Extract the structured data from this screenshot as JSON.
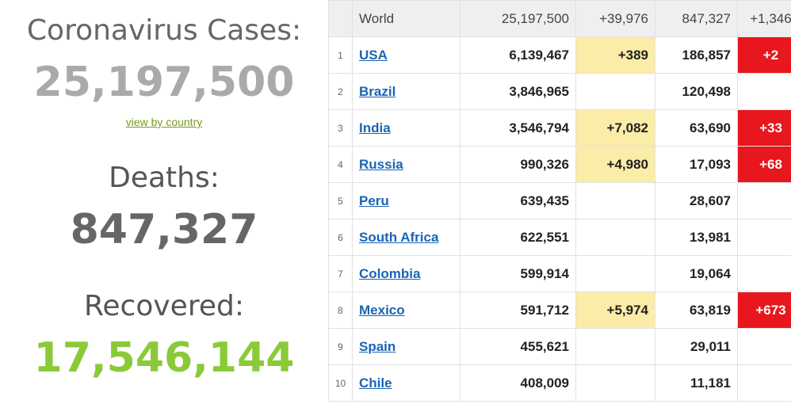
{
  "summary": {
    "cases_label": "Coronavirus Cases:",
    "cases_value": "25,197,500",
    "view_by_country": "view by country",
    "deaths_label": "Deaths:",
    "deaths_value": "847,327",
    "recovered_label": "Recovered:",
    "recovered_value": "17,546,144"
  },
  "table": {
    "world": {
      "country": "World",
      "total_cases": "25,197,500",
      "new_cases": "+39,976",
      "total_deaths": "847,327",
      "new_deaths": "+1,346"
    },
    "rows": [
      {
        "rank": "1",
        "country": "USA",
        "total_cases": "6,139,467",
        "new_cases": "+389",
        "total_deaths": "186,857",
        "new_deaths": "+2"
      },
      {
        "rank": "2",
        "country": "Brazil",
        "total_cases": "3,846,965",
        "new_cases": "",
        "total_deaths": "120,498",
        "new_deaths": ""
      },
      {
        "rank": "3",
        "country": "India",
        "total_cases": "3,546,794",
        "new_cases": "+7,082",
        "total_deaths": "63,690",
        "new_deaths": "+33"
      },
      {
        "rank": "4",
        "country": "Russia",
        "total_cases": "990,326",
        "new_cases": "+4,980",
        "total_deaths": "17,093",
        "new_deaths": "+68"
      },
      {
        "rank": "5",
        "country": "Peru",
        "total_cases": "639,435",
        "new_cases": "",
        "total_deaths": "28,607",
        "new_deaths": ""
      },
      {
        "rank": "6",
        "country": "South Africa",
        "total_cases": "622,551",
        "new_cases": "",
        "total_deaths": "13,981",
        "new_deaths": ""
      },
      {
        "rank": "7",
        "country": "Colombia",
        "total_cases": "599,914",
        "new_cases": "",
        "total_deaths": "19,064",
        "new_deaths": ""
      },
      {
        "rank": "8",
        "country": "Mexico",
        "total_cases": "591,712",
        "new_cases": "+5,974",
        "total_deaths": "63,819",
        "new_deaths": "+673"
      },
      {
        "rank": "9",
        "country": "Spain",
        "total_cases": "455,621",
        "new_cases": "",
        "total_deaths": "29,011",
        "new_deaths": ""
      },
      {
        "rank": "10",
        "country": "Chile",
        "total_cases": "408,009",
        "new_cases": "",
        "total_deaths": "11,181",
        "new_deaths": ""
      }
    ]
  },
  "colors": {
    "new_cases_highlight": "#fbeca8",
    "new_deaths_highlight": "#e8161d",
    "recovered": "#8aca38",
    "link": "#1b64b4"
  }
}
